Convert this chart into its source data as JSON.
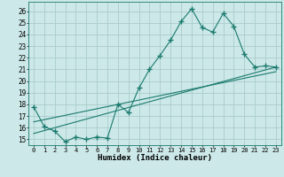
{
  "title": "",
  "xlabel": "Humidex (Indice chaleur)",
  "ylabel": "",
  "xlim": [
    -0.5,
    23.5
  ],
  "ylim": [
    14.5,
    26.8
  ],
  "xticks": [
    0,
    1,
    2,
    3,
    4,
    5,
    6,
    7,
    8,
    9,
    10,
    11,
    12,
    13,
    14,
    15,
    16,
    17,
    18,
    19,
    20,
    21,
    22,
    23
  ],
  "yticks": [
    15,
    16,
    17,
    18,
    19,
    20,
    21,
    22,
    23,
    24,
    25,
    26
  ],
  "background_color": "#cce8e8",
  "grid_color": "#aacccc",
  "line_color": "#1a7a6e",
  "main_x": [
    0,
    1,
    2,
    3,
    4,
    5,
    6,
    7,
    8,
    9,
    10,
    11,
    12,
    13,
    14,
    15,
    16,
    17,
    18,
    19,
    20,
    21,
    22,
    23
  ],
  "main_y": [
    17.8,
    16.1,
    15.7,
    14.8,
    15.2,
    15.0,
    15.2,
    15.1,
    18.0,
    17.3,
    19.4,
    21.0,
    22.2,
    23.5,
    25.1,
    26.2,
    24.6,
    24.2,
    25.8,
    24.7,
    22.3,
    21.2,
    21.3,
    21.2
  ],
  "trend1_x": [
    0,
    23
  ],
  "trend1_y": [
    15.5,
    21.2
  ],
  "trend2_x": [
    0,
    23
  ],
  "trend2_y": [
    16.5,
    20.8
  ],
  "marker": "+"
}
